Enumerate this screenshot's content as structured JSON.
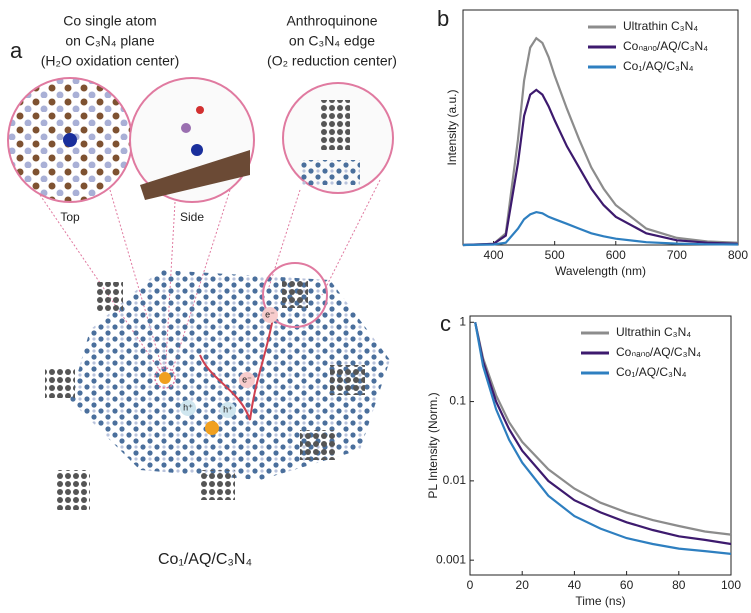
{
  "diagram": {
    "panel_label": "a",
    "left_callout": [
      "Co single atom",
      "on C₃N₄ plane",
      "(H₂O oxidation center)"
    ],
    "right_callout": [
      "Anthroquinone",
      "on C₃N₄ edge",
      "(O₂ reduction center)"
    ],
    "view_labels": [
      "Top",
      "Side"
    ],
    "charge_labels": [
      "e⁻",
      "e⁻",
      "h⁺",
      "h⁺"
    ],
    "caption": "Co₁/AQ/C₃N₄"
  },
  "chart_data": [
    {
      "type": "line",
      "panel_label": "b",
      "xlabel": "Wavelength (nm)",
      "ylabel": "Intensity (a.u.)",
      "x": [
        350,
        400,
        420,
        440,
        450,
        460,
        470,
        480,
        490,
        500,
        520,
        540,
        560,
        580,
        600,
        650,
        700,
        750,
        800
      ],
      "series": [
        {
          "name": "Ultrathin C₃N₄",
          "color": "#8c8c8c",
          "values": [
            0,
            0.005,
            0.05,
            0.45,
            0.7,
            0.84,
            0.88,
            0.86,
            0.8,
            0.72,
            0.58,
            0.45,
            0.33,
            0.24,
            0.17,
            0.07,
            0.03,
            0.015,
            0.01
          ]
        },
        {
          "name": "Coₙₐₙₒ/AQ/C₃N₄",
          "color": "#3d1a6e",
          "values": [
            0,
            0.005,
            0.04,
            0.35,
            0.55,
            0.64,
            0.66,
            0.64,
            0.59,
            0.53,
            0.42,
            0.33,
            0.24,
            0.17,
            0.12,
            0.05,
            0.02,
            0.01,
            0.005
          ]
        },
        {
          "name": "Co₁/AQ/C₃N₄",
          "color": "#2e7fc0",
          "values": [
            0,
            0.002,
            0.01,
            0.07,
            0.11,
            0.13,
            0.14,
            0.135,
            0.12,
            0.11,
            0.09,
            0.07,
            0.05,
            0.037,
            0.027,
            0.012,
            0.006,
            0.003,
            0.002
          ]
        }
      ],
      "xlim": [
        350,
        800
      ],
      "xticks": [
        400,
        500,
        600,
        700,
        800
      ],
      "ylim": [
        0,
        1
      ],
      "legend": "upper right"
    },
    {
      "type": "line",
      "panel_label": "c",
      "xlabel": "Time (ns)",
      "ylabel": "PL Intensity (Norm.)",
      "x": [
        2,
        5,
        10,
        15,
        20,
        30,
        40,
        50,
        60,
        70,
        80,
        90,
        100
      ],
      "series": [
        {
          "name": "Ultrathin C₃N₄",
          "color": "#8c8c8c",
          "values": [
            1,
            0.35,
            0.12,
            0.055,
            0.031,
            0.014,
            0.008,
            0.0053,
            0.004,
            0.0032,
            0.0027,
            0.0023,
            0.0021
          ]
        },
        {
          "name": "Coₙₐₙₒ/AQ/C₃N₄",
          "color": "#3d1a6e",
          "values": [
            1,
            0.32,
            0.1,
            0.045,
            0.024,
            0.01,
            0.0057,
            0.004,
            0.003,
            0.0024,
            0.002,
            0.0018,
            0.0016
          ]
        },
        {
          "name": "Co₁/AQ/C₃N₄",
          "color": "#2e7fc0",
          "values": [
            1,
            0.28,
            0.08,
            0.033,
            0.017,
            0.0065,
            0.0036,
            0.0025,
            0.0019,
            0.0016,
            0.0014,
            0.0013,
            0.0012
          ]
        }
      ],
      "xlim": [
        0,
        100
      ],
      "xticks": [
        0,
        20,
        40,
        60,
        80,
        100
      ],
      "ylim": [
        0.00065,
        1.2
      ],
      "yticks": [
        1,
        0.1,
        0.01,
        0.001
      ],
      "yscale": "log",
      "legend": "upper right"
    }
  ]
}
